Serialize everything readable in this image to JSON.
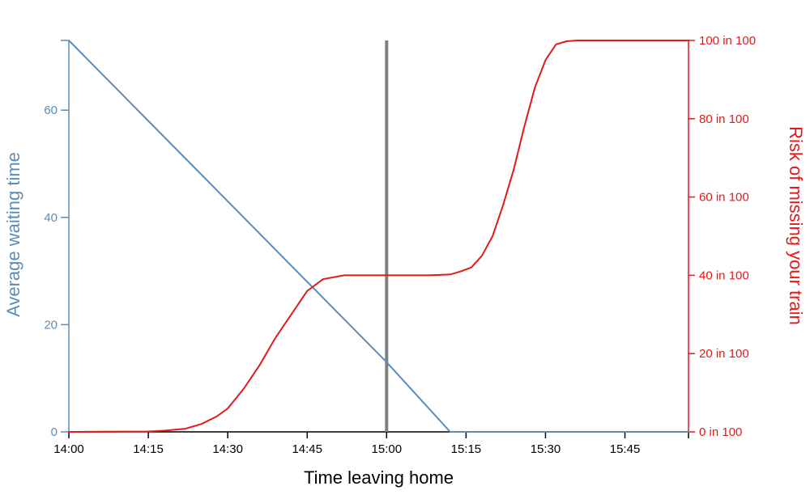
{
  "chart_data": {
    "type": "line",
    "xlabel": "Time leaving home",
    "ylabel_left": "Average waiting time",
    "ylabel_right": "Risk of missing your train",
    "x_range_minutes": [
      0,
      117
    ],
    "x_ticks": [
      {
        "value": 0,
        "label": "14:00"
      },
      {
        "value": 15,
        "label": "14:15"
      },
      {
        "value": 30,
        "label": "14:30"
      },
      {
        "value": 45,
        "label": "14:45"
      },
      {
        "value": 60,
        "label": "15:00"
      },
      {
        "value": 75,
        "label": "15:15"
      },
      {
        "value": 90,
        "label": "15:30"
      },
      {
        "value": 105,
        "label": "15:45"
      }
    ],
    "y_left_range": [
      0,
      73
    ],
    "y_left_ticks": [
      {
        "value": 0,
        "label": "0"
      },
      {
        "value": 20,
        "label": "20"
      },
      {
        "value": 40,
        "label": "40"
      },
      {
        "value": 60,
        "label": "60"
      }
    ],
    "y_right_range": [
      0,
      100
    ],
    "y_right_ticks": [
      {
        "value": 0,
        "label": "0 in 100"
      },
      {
        "value": 20,
        "label": "20 in 100"
      },
      {
        "value": 40,
        "label": "40 in 100"
      },
      {
        "value": 60,
        "label": "60 in 100"
      },
      {
        "value": 80,
        "label": "80 in 100"
      },
      {
        "value": 100,
        "label": "100 in 100"
      }
    ],
    "marker_x": 60,
    "series": [
      {
        "axis": "left",
        "color": "#5b8db8",
        "x": [
          0,
          15,
          30,
          45,
          60,
          72,
          80,
          90,
          100,
          117
        ],
        "y": [
          73,
          58,
          43,
          28,
          13,
          0,
          0,
          0,
          0,
          0
        ]
      },
      {
        "axis": "right",
        "color": "#e31a1c",
        "x": [
          0,
          15,
          18,
          22,
          25,
          28,
          30,
          33,
          36,
          39,
          42,
          45,
          48,
          52,
          56,
          60,
          64,
          68,
          72,
          74,
          76,
          78,
          80,
          82,
          84,
          86,
          88,
          90,
          92,
          94,
          96,
          100,
          108,
          117
        ],
        "y": [
          0,
          0.1,
          0.3,
          0.8,
          2,
          4,
          6,
          11,
          17,
          24,
          30,
          36,
          39,
          40,
          40,
          40,
          40,
          40,
          40.2,
          41,
          42,
          45,
          50,
          58,
          67,
          78,
          88,
          95,
          99,
          99.8,
          100,
          100,
          100,
          100
        ]
      }
    ]
  },
  "colors": {
    "left_axis": "#5b8db8",
    "right_axis": "#e31a1c",
    "marker": "#808080",
    "x_axis": "#000000"
  }
}
